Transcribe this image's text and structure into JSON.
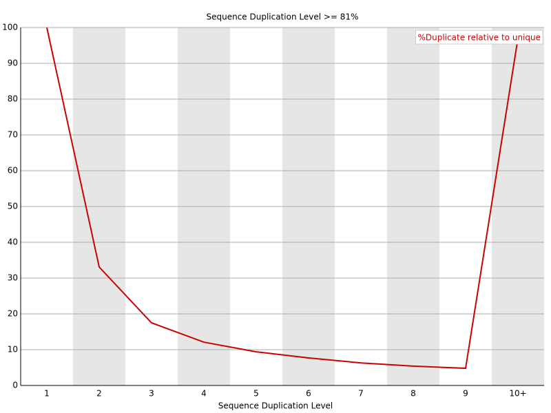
{
  "chart_data": {
    "type": "line",
    "title": "Sequence Duplication Level >= 81%",
    "x_label": "Sequence Duplication Level",
    "categories": [
      "1",
      "2",
      "3",
      "4",
      "5",
      "6",
      "7",
      "8",
      "9",
      "10+"
    ],
    "series": [
      {
        "name": "%Duplicate relative to unique",
        "color": "#cc0000",
        "values": [
          100,
          33.1,
          17.5,
          12.1,
          9.4,
          7.7,
          6.3,
          5.4,
          4.8,
          97
        ]
      }
    ],
    "ylim": [
      0,
      100
    ],
    "yticks": [
      0,
      10,
      20,
      30,
      40,
      50,
      60,
      70,
      80,
      90,
      100
    ],
    "grid": true,
    "legend": "top-right"
  }
}
